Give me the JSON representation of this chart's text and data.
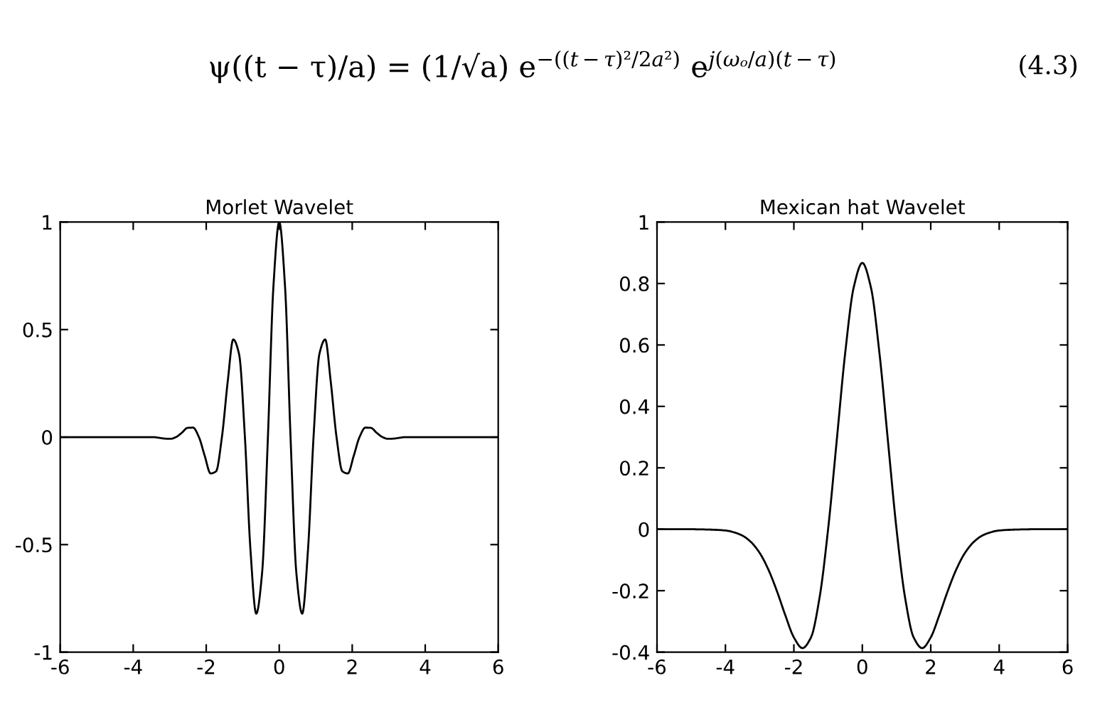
{
  "chart_data": [
    {
      "type": "line",
      "title": "Morlet Wavelet",
      "annotations": [
        "ψ((t − τ)/a) = (1/√a) e$^{−((t−τ)²/2a²)}$ e$^{j(ωₒ/a)(t−τ)}$",
        "(4.3)"
      ],
      "x": [
        -6,
        -3.46,
        -3.3,
        -3.14,
        -2.98,
        -2.83,
        -2.67,
        -2.51,
        -2.36,
        -2.2,
        -2.04,
        -1.88,
        -1.73,
        -1.57,
        -1.41,
        -1.26,
        -1.1,
        -0.94,
        -0.79,
        -0.63,
        -0.47,
        -0.31,
        -0.16,
        0,
        0.16,
        0.31,
        0.47,
        0.63,
        0.79,
        0.94,
        1.1,
        1.26,
        1.41,
        1.57,
        1.73,
        1.88,
        2.04,
        2.2,
        2.36,
        2.51,
        2.67,
        2.83,
        2.98,
        3.14,
        3.3,
        3.46,
        6
      ],
      "series": [
        {
          "color": "#000000",
          "values": [
            0,
            0,
            -0.003,
            -0.007,
            -0.008,
            0,
            0.02,
            0.043,
            0.044,
            0,
            -0.088,
            -0.169,
            -0.159,
            0,
            0.26,
            0.454,
            0.386,
            0,
            -0.519,
            -0.821,
            -0.633,
            0,
            0.698,
            1,
            0.698,
            0,
            -0.633,
            -0.821,
            -0.519,
            0,
            0.386,
            0.454,
            0.26,
            0,
            -0.159,
            -0.169,
            -0.088,
            0,
            0.044,
            0.043,
            0.02,
            0,
            -0.008,
            -0.007,
            -0.003,
            0,
            0
          ]
        }
      ],
      "xlim": [
        -6,
        6
      ],
      "xticks": [
        -6,
        -4,
        -2,
        0,
        2,
        4,
        6
      ],
      "ylim": [
        -1,
        1
      ],
      "yticks": [
        -1,
        -0.5,
        0,
        0.5,
        1
      ],
      "grid": false,
      "legend": false,
      "marker": "none",
      "line_style": "solid"
    },
    {
      "type": "line",
      "title": "Mexican hat Wavelet",
      "x": [
        -6,
        -5,
        -4.5,
        -4,
        -3.75,
        -3.5,
        -3.25,
        -3,
        -2.75,
        -2.5,
        -2.25,
        -2,
        -1.75,
        -1.5,
        -1.25,
        -1,
        -0.75,
        -0.5,
        -0.25,
        0,
        0.25,
        0.5,
        0.75,
        1,
        1.25,
        1.5,
        1.75,
        2,
        2.25,
        2.5,
        2.75,
        3,
        3.25,
        3.5,
        3.75,
        4,
        4.5,
        5,
        6
      ],
      "series": [
        {
          "color": "#000000",
          "values": [
            0,
            0,
            -0.001,
            -0.004,
            -0.01,
            -0.021,
            -0.042,
            -0.077,
            -0.13,
            -0.2,
            -0.28,
            -0.352,
            -0.387,
            -0.352,
            -0.223,
            0,
            0.286,
            0.574,
            0.788,
            0.867,
            0.788,
            0.574,
            0.286,
            0,
            -0.223,
            -0.352,
            -0.387,
            -0.352,
            -0.28,
            -0.2,
            -0.13,
            -0.077,
            -0.042,
            -0.021,
            -0.01,
            -0.004,
            -0.001,
            0,
            0
          ]
        }
      ],
      "xlim": [
        -6,
        6
      ],
      "xticks": [
        -6,
        -4,
        -2,
        0,
        2,
        4,
        6
      ],
      "ylim": [
        -0.4,
        1
      ],
      "yticks": [
        -0.4,
        -0.2,
        0,
        0.2,
        0.4,
        0.6,
        0.8,
        1
      ],
      "grid": false,
      "legend": false,
      "marker": "none",
      "line_style": "solid"
    }
  ]
}
